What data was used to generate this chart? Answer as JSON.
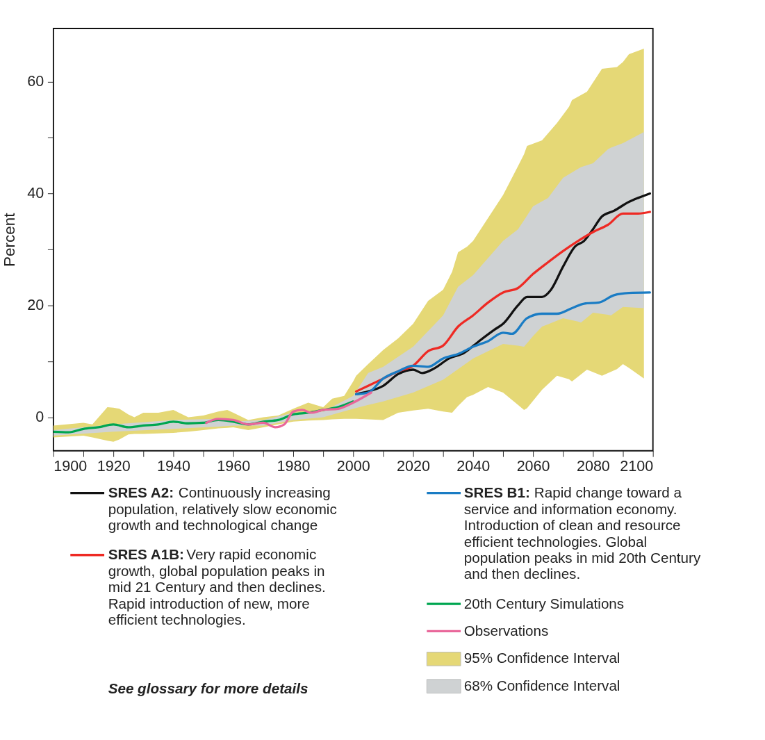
{
  "chart_data": {
    "type": "line",
    "ylabel": "Percent",
    "xlim": [
      1900,
      2100
    ],
    "ylim": [
      -6,
      69.5
    ],
    "xticks": [
      1900,
      {
        "value": 1910,
        "label": null
      },
      1920,
      {
        "value": 1930,
        "label": null
      },
      1940,
      {
        "value": 1950,
        "label": null
      },
      1960,
      {
        "value": 1970,
        "label": null
      },
      1980,
      {
        "value": 1990,
        "label": null
      },
      2000,
      {
        "value": 2010,
        "label": null
      },
      2020,
      {
        "value": 2030,
        "label": null
      },
      2040,
      {
        "value": 2050,
        "label": null
      },
      2060,
      {
        "value": 2070,
        "label": null
      },
      2080,
      {
        "value": 2090,
        "label": null
      },
      2100
    ],
    "yticks": [
      0,
      {
        "value": 10,
        "label": null
      },
      20,
      {
        "value": 30,
        "label": null
      },
      40,
      {
        "value": 50,
        "label": null
      },
      60
    ],
    "grid": false,
    "legend": "bottom",
    "line_style": "solid",
    "marker": "none",
    "series": [
      {
        "name": "SRES A2: Continuously increasing population, relatively slow economic growth and technological change",
        "color": "#111111",
        "x": [
          2001,
          2005,
          2010,
          2015,
          2020,
          2023,
          2027,
          2032,
          2037,
          2042,
          2047,
          2050,
          2055,
          2058,
          2063,
          2066,
          2070,
          2074,
          2077,
          2080,
          2083,
          2087,
          2092,
          2095,
          2099
        ],
        "values": [
          4.1,
          4.6,
          5.6,
          7.7,
          8.5,
          7.9,
          8.7,
          10.5,
          11.5,
          13.6,
          15.6,
          16.7,
          20,
          21.5,
          21.5,
          22.8,
          26.9,
          30.5,
          31.5,
          33.6,
          35.9,
          36.9,
          38.5,
          39.2,
          40
        ]
      },
      {
        "name": "SRES A1B: Very rapid economic growth, global population peaks in mid 21 Century and then declines. Rapid introduction of new, more efficient technologies.",
        "color": "#ee2a24",
        "x": [
          2001,
          2005,
          2010,
          2015,
          2020,
          2025,
          2030,
          2035,
          2040,
          2045,
          2050,
          2055,
          2060,
          2065,
          2070,
          2075,
          2080,
          2085,
          2090,
          2095,
          2099
        ],
        "values": [
          4.6,
          5.6,
          6.9,
          8.2,
          9.2,
          11.8,
          12.8,
          16.2,
          18.2,
          20.5,
          22.3,
          23.1,
          25.6,
          27.7,
          29.7,
          31.5,
          33.1,
          34.4,
          36.4,
          36.4,
          36.7
        ]
      },
      {
        "name": "SRES B1: Rapid change toward a service and information economy. Introduction of clean and resource efficient technologies. Global population peaks in mid 20th Century and then declines.",
        "color": "#1a7cc4",
        "x": [
          2001,
          2005,
          2010,
          2015,
          2020,
          2025,
          2030,
          2035,
          2040,
          2045,
          2050,
          2053,
          2058,
          2063,
          2068,
          2073,
          2077,
          2082,
          2087,
          2092,
          2099
        ],
        "values": [
          4.1,
          4.4,
          6.9,
          8.2,
          9.2,
          9,
          10.5,
          11.3,
          12.6,
          13.6,
          15.1,
          14.9,
          17.7,
          18.5,
          18.5,
          19.5,
          20.3,
          20.5,
          21.8,
          22.2,
          22.3
        ]
      },
      {
        "name": "20th Century Simulations",
        "color": "#00a650",
        "x": [
          1900,
          1905,
          1910,
          1915,
          1920,
          1925,
          1930,
          1935,
          1940,
          1945,
          1950,
          1955,
          1960,
          1965,
          1970,
          1975,
          1980,
          1985,
          1990,
          1995,
          2000
        ],
        "values": [
          -2.6,
          -2.7,
          -2.1,
          -1.8,
          -1.3,
          -1.8,
          -1.5,
          -1.3,
          -0.8,
          -1.1,
          -1,
          -0.5,
          -0.8,
          -1.3,
          -0.8,
          -0.5,
          0.5,
          0.8,
          1.3,
          1.8,
          2.8
        ]
      },
      {
        "name": "Observations",
        "color": "#e9679a",
        "x": [
          1951,
          1955,
          1960,
          1965,
          1970,
          1974,
          1977,
          1980,
          1983,
          1986,
          1990,
          1995,
          2000,
          2006
        ],
        "values": [
          -1,
          -0.3,
          -0.5,
          -1.3,
          -1,
          -1.8,
          -1.3,
          1,
          1.3,
          0.8,
          1.3,
          1.5,
          2.6,
          4.4
        ]
      },
      {
        "name": "95% Confidence Interval",
        "color": "#e5d876",
        "x": [
          1900,
          1910,
          1913,
          1918,
          1920,
          1922,
          1925,
          1927,
          1930,
          1935,
          1940,
          1945,
          1950,
          1955,
          1958,
          1960,
          1965,
          1970,
          1975,
          1980,
          1985,
          1990,
          1993,
          1997,
          2000,
          2001,
          2005,
          2010,
          2015,
          2020,
          2025,
          2030,
          2033,
          2035,
          2038,
          2040,
          2045,
          2050,
          2055,
          2057,
          2058,
          2063,
          2068,
          2072,
          2073,
          2078,
          2083,
          2088,
          2090,
          2092,
          2097
        ],
        "values": [
          null,
          null,
          null,
          null,
          null,
          null,
          null,
          null,
          null,
          null,
          null,
          null,
          null,
          null,
          null,
          null,
          null,
          null,
          null,
          null,
          null,
          null,
          null,
          null,
          null,
          null,
          null,
          null,
          null,
          null,
          null,
          null,
          null,
          null,
          null,
          null,
          null,
          null,
          null,
          null,
          null,
          null,
          null,
          null,
          null,
          null,
          null,
          null,
          null,
          null,
          null
        ],
        "lower": [
          -3.6,
          -3.3,
          -3.6,
          -4.2,
          -4.4,
          -4,
          -3.1,
          -3,
          -3,
          -2.9,
          -2.8,
          -2.6,
          -2.3,
          -2,
          -1.9,
          -1.8,
          -2.3,
          -1.8,
          -1.3,
          -0.8,
          -0.6,
          -0.5,
          -0.4,
          -0.3,
          -0.3,
          -0.3,
          -0.4,
          -0.5,
          0.8,
          1.2,
          1.5,
          1,
          0.8,
          2,
          3.6,
          4,
          5.4,
          4.4,
          2.2,
          1.3,
          1.6,
          4.9,
          7.4,
          6.8,
          6.4,
          8.5,
          7.4,
          8.6,
          9.5,
          8.8,
          6.9
        ],
        "upper": [
          -1.5,
          -1,
          -1.3,
          1.8,
          1.7,
          1.5,
          0.5,
          0,
          0.8,
          0.8,
          1.3,
          0,
          0.3,
          1,
          1.3,
          0.8,
          -0.5,
          0,
          0.3,
          1.5,
          2.6,
          1.8,
          3.3,
          3.8,
          6.4,
          7.4,
          9.5,
          12,
          14.1,
          16.7,
          20.8,
          22.8,
          26,
          29.5,
          30.5,
          31.5,
          35.6,
          39.7,
          44.9,
          47,
          48.5,
          49.5,
          52.6,
          55.5,
          56.7,
          58.2,
          62.3,
          62.6,
          63.5,
          64.9,
          65.9
        ]
      },
      {
        "name": "68% Confidence Interval",
        "color": "#cfd2d3",
        "x": [
          1900,
          1920,
          1940,
          1955,
          1960,
          1970,
          1980,
          1990,
          2000,
          2005,
          2010,
          2020,
          2030,
          2035,
          2040,
          2050,
          2055,
          2057,
          2060,
          2063,
          2065,
          2070,
          2075,
          2076,
          2080,
          2085,
          2086,
          2090,
          2097
        ],
        "values": [
          null,
          null,
          null,
          null,
          null,
          null,
          null,
          null,
          null,
          null,
          null,
          null,
          null,
          null,
          null,
          null,
          null,
          null,
          null,
          null,
          null,
          null,
          null,
          null,
          null,
          null,
          null,
          null,
          null
        ],
        "lower": [
          -3.3,
          -2.6,
          -2.1,
          -1.7,
          -1.5,
          -1.5,
          -0.5,
          0,
          1.5,
          2.2,
          2.8,
          4.4,
          6.7,
          8.6,
          10.5,
          13.1,
          12.8,
          12.6,
          14.5,
          16.2,
          16.6,
          17.7,
          17.1,
          16.9,
          18.7,
          18.3,
          18.2,
          19.7,
          19.5
        ],
        "upper": [
          -2.3,
          -1.3,
          -0.5,
          -0.3,
          -0.8,
          -0.5,
          0.8,
          1,
          3.8,
          7.9,
          9,
          12.6,
          18.2,
          23.3,
          25.4,
          31.5,
          33.6,
          35.2,
          37.7,
          38.6,
          39.2,
          42.8,
          44.4,
          44.7,
          45.4,
          47.9,
          48.2,
          49,
          51
        ]
      }
    ],
    "annotations": [
      "See glossary for more details"
    ]
  }
}
